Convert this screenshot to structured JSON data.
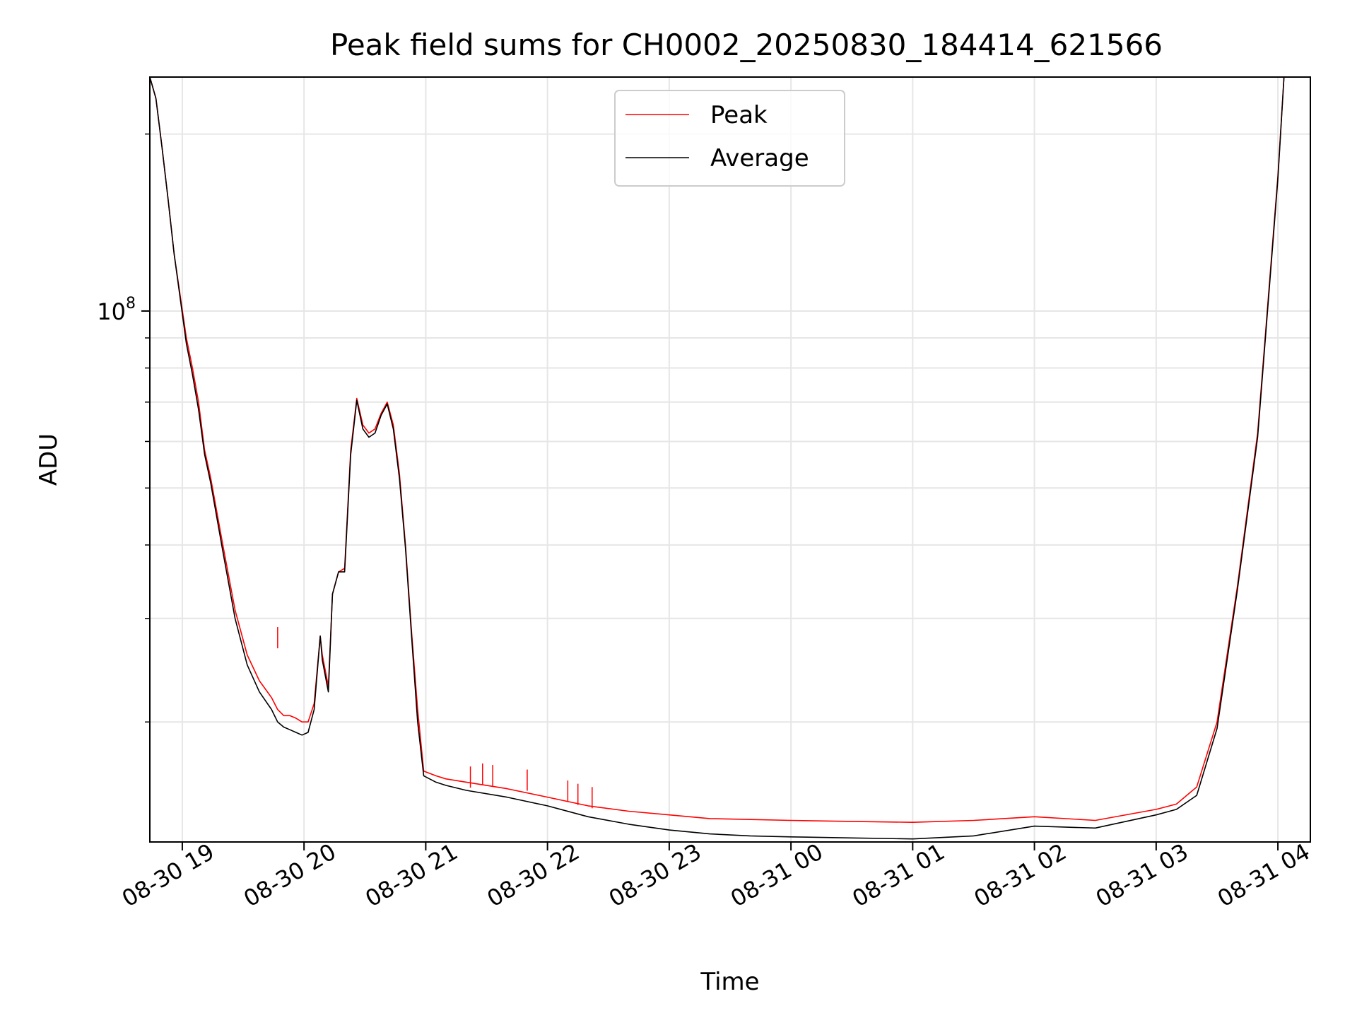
{
  "chart_data": {
    "type": "line",
    "title": "Peak field sums for CH0002_20250830_184414_621566",
    "xlabel": "Time",
    "ylabel": "ADU",
    "y_scale": "log",
    "ylim": [
      12500000,
      250000000
    ],
    "xlim": [
      "2025-08-30 18:44",
      "2025-08-31 04:16"
    ],
    "x_ticks": [
      {
        "t": "2025-08-30 19:00",
        "label": "08-30 19"
      },
      {
        "t": "2025-08-30 20:00",
        "label": "08-30 20"
      },
      {
        "t": "2025-08-30 21:00",
        "label": "08-30 21"
      },
      {
        "t": "2025-08-30 22:00",
        "label": "08-30 22"
      },
      {
        "t": "2025-08-30 23:00",
        "label": "08-30 23"
      },
      {
        "t": "2025-08-31 00:00",
        "label": "08-31 00"
      },
      {
        "t": "2025-08-31 01:00",
        "label": "08-31 01"
      },
      {
        "t": "2025-08-31 02:00",
        "label": "08-31 02"
      },
      {
        "t": "2025-08-31 03:00",
        "label": "08-31 03"
      },
      {
        "t": "2025-08-31 04:00",
        "label": "08-31 04"
      }
    ],
    "y_major_ticks": [
      {
        "value": 100000000,
        "base": "10",
        "exp": "8"
      }
    ],
    "y_minor_ticks": [
      20000000,
      30000000,
      40000000,
      50000000,
      60000000,
      70000000,
      80000000,
      90000000,
      200000000
    ],
    "grid": true,
    "legend": {
      "placement": "top-center"
    },
    "series": [
      {
        "name": "Peak",
        "color": "#ff0000",
        "x": [
          "2025-08-30 18:44",
          "2025-08-30 18:47",
          "2025-08-30 18:50",
          "2025-08-30 18:53",
          "2025-08-30 18:56",
          "2025-08-30 19:02",
          "2025-08-30 19:05",
          "2025-08-30 19:08",
          "2025-08-30 19:11",
          "2025-08-30 19:14",
          "2025-08-30 19:20",
          "2025-08-30 19:26",
          "2025-08-30 19:32",
          "2025-08-30 19:38",
          "2025-08-30 19:44",
          "2025-08-30 19:47",
          "2025-08-30 19:50",
          "2025-08-30 19:53",
          "2025-08-30 19:56",
          "2025-08-30 19:59",
          "2025-08-30 20:02",
          "2025-08-30 20:05",
          "2025-08-30 20:08",
          "2025-08-30 20:09",
          "2025-08-30 20:12",
          "2025-08-30 20:14",
          "2025-08-30 20:17",
          "2025-08-30 20:20",
          "2025-08-30 20:23",
          "2025-08-30 20:26",
          "2025-08-30 20:29",
          "2025-08-30 20:32",
          "2025-08-30 20:35",
          "2025-08-30 20:38",
          "2025-08-30 20:41",
          "2025-08-30 20:44",
          "2025-08-30 20:47",
          "2025-08-30 20:50",
          "2025-08-30 20:53",
          "2025-08-30 20:56",
          "2025-08-30 20:59",
          "2025-08-30 21:05",
          "2025-08-30 21:10",
          "2025-08-30 21:20",
          "2025-08-30 21:40",
          "2025-08-30 22:00",
          "2025-08-30 22:20",
          "2025-08-30 22:40",
          "2025-08-30 23:00",
          "2025-08-30 23:20",
          "2025-08-30 23:40",
          "2025-08-31 00:00",
          "2025-08-31 00:30",
          "2025-08-31 01:00",
          "2025-08-31 01:30",
          "2025-08-31 02:00",
          "2025-08-31 02:30",
          "2025-08-31 03:00",
          "2025-08-31 03:10",
          "2025-08-31 03:20",
          "2025-08-31 03:30",
          "2025-08-31 03:40",
          "2025-08-31 03:50",
          "2025-08-31 04:00",
          "2025-08-31 04:03"
        ],
        "y": [
          250000000,
          230000000,
          190000000,
          155000000,
          125000000,
          90000000,
          80000000,
          70000000,
          58000000,
          52000000,
          40000000,
          31000000,
          26000000,
          23500000,
          22000000,
          21000000,
          20500000,
          20500000,
          20300000,
          20000000,
          20000000,
          21500000,
          28000000,
          26000000,
          23000000,
          33000000,
          36000000,
          36500000,
          58000000,
          71000000,
          64000000,
          62000000,
          63000000,
          67000000,
          70000000,
          64000000,
          53000000,
          40000000,
          28500000,
          21000000,
          16500000,
          16200000,
          16000000,
          15800000,
          15400000,
          14900000,
          14400000,
          14100000,
          13900000,
          13700000,
          13650000,
          13600000,
          13550000,
          13500000,
          13600000,
          13800000,
          13600000,
          14200000,
          14500000,
          15500000,
          20000000,
          34000000,
          62000000,
          170000000,
          250000000
        ]
      },
      {
        "name": "Average",
        "color": "#000000",
        "x": [
          "2025-08-30 18:44",
          "2025-08-30 18:47",
          "2025-08-30 18:50",
          "2025-08-30 18:53",
          "2025-08-30 18:56",
          "2025-08-30 19:02",
          "2025-08-30 19:05",
          "2025-08-30 19:08",
          "2025-08-30 19:11",
          "2025-08-30 19:14",
          "2025-08-30 19:20",
          "2025-08-30 19:26",
          "2025-08-30 19:32",
          "2025-08-30 19:38",
          "2025-08-30 19:44",
          "2025-08-30 19:47",
          "2025-08-30 19:50",
          "2025-08-30 19:53",
          "2025-08-30 19:56",
          "2025-08-30 19:59",
          "2025-08-30 20:02",
          "2025-08-30 20:05",
          "2025-08-30 20:08",
          "2025-08-30 20:09",
          "2025-08-30 20:12",
          "2025-08-30 20:14",
          "2025-08-30 20:17",
          "2025-08-30 20:20",
          "2025-08-30 20:23",
          "2025-08-30 20:26",
          "2025-08-30 20:29",
          "2025-08-30 20:32",
          "2025-08-30 20:35",
          "2025-08-30 20:38",
          "2025-08-30 20:41",
          "2025-08-30 20:44",
          "2025-08-30 20:47",
          "2025-08-30 20:50",
          "2025-08-30 20:53",
          "2025-08-30 20:56",
          "2025-08-30 20:59",
          "2025-08-30 21:05",
          "2025-08-30 21:10",
          "2025-08-30 21:20",
          "2025-08-30 21:40",
          "2025-08-30 22:00",
          "2025-08-30 22:20",
          "2025-08-30 22:40",
          "2025-08-30 23:00",
          "2025-08-30 23:20",
          "2025-08-30 23:40",
          "2025-08-31 00:00",
          "2025-08-31 00:30",
          "2025-08-31 01:00",
          "2025-08-31 01:30",
          "2025-08-31 02:00",
          "2025-08-31 02:30",
          "2025-08-31 03:00",
          "2025-08-31 03:10",
          "2025-08-31 03:20",
          "2025-08-31 03:30",
          "2025-08-31 03:40",
          "2025-08-31 03:50",
          "2025-08-31 04:00",
          "2025-08-31 04:03"
        ],
        "y": [
          250000000,
          230000000,
          190000000,
          155000000,
          125000000,
          88000000,
          78000000,
          68000000,
          57000000,
          51000000,
          39000000,
          30000000,
          25000000,
          22500000,
          21000000,
          20000000,
          19600000,
          19400000,
          19200000,
          19000000,
          19200000,
          21000000,
          28000000,
          25500000,
          22500000,
          33000000,
          36000000,
          36000000,
          57000000,
          70500000,
          63000000,
          61000000,
          62000000,
          66500000,
          69500000,
          63000000,
          52000000,
          39500000,
          28000000,
          20000000,
          16200000,
          15800000,
          15600000,
          15300000,
          14900000,
          14400000,
          13800000,
          13400000,
          13100000,
          12900000,
          12800000,
          12750000,
          12700000,
          12650000,
          12800000,
          13300000,
          13200000,
          13900000,
          14200000,
          15000000,
          19500000,
          33500000,
          61000000,
          168000000,
          250000000
        ]
      }
    ],
    "annotations": {
      "peak_spikes": [
        {
          "x": "2025-08-30 19:47",
          "y": 29000000
        },
        {
          "x": "2025-08-30 21:22",
          "y": 16800000
        },
        {
          "x": "2025-08-30 21:28",
          "y": 17000000
        },
        {
          "x": "2025-08-30 21:33",
          "y": 16900000
        },
        {
          "x": "2025-08-30 21:50",
          "y": 16600000
        },
        {
          "x": "2025-08-30 22:10",
          "y": 15900000
        },
        {
          "x": "2025-08-30 22:15",
          "y": 15700000
        },
        {
          "x": "2025-08-30 22:22",
          "y": 15500000
        }
      ]
    }
  }
}
